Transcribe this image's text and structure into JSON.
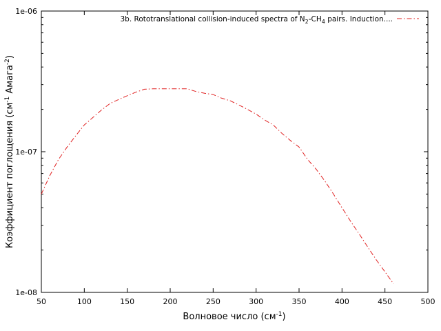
{
  "chart_data": {
    "type": "line",
    "title": "",
    "xlabel_main": "Волновое число (см",
    "xlabel_sup": "-1",
    "xlabel_end": ")",
    "ylabel_main": "Коэффициент поглощения (см",
    "ylabel_sup1": "-1",
    "ylabel_mid": " Амага",
    "ylabel_sup2": "-2",
    "ylabel_end": ")",
    "xlim": [
      50,
      500
    ],
    "ylim": [
      1e-08,
      1e-06
    ],
    "yscale": "log",
    "x_ticks": [
      50,
      100,
      150,
      200,
      250,
      300,
      350,
      400,
      450,
      500
    ],
    "x_tick_labels": [
      "50",
      "100",
      "150",
      "200",
      "250",
      "300",
      "350",
      "400",
      "450",
      "500"
    ],
    "y_ticks": [
      1e-08,
      1e-07,
      1e-06
    ],
    "y_tick_labels": [
      "1e-08",
      "1e-07",
      "1e-06"
    ],
    "grid": false,
    "legend_position": "top-right",
    "legend": {
      "text_a": "3b. Rototranslational collision-induced spectra of N",
      "sub_a": "2",
      "text_b": "-CH",
      "sub_b": "4",
      "text_c": " pairs. Induction...."
    },
    "series": [
      {
        "color": "#e02020",
        "dash": "dash-dot",
        "x": [
          50,
          60,
          70,
          80,
          90,
          100,
          110,
          120,
          130,
          140,
          150,
          160,
          170,
          180,
          190,
          200,
          210,
          220,
          230,
          240,
          250,
          260,
          270,
          280,
          290,
          300,
          310,
          320,
          330,
          340,
          350,
          360,
          370,
          380,
          390,
          400,
          410,
          420,
          430,
          440,
          450,
          460
        ],
        "y": [
          5e-08,
          6.8e-08,
          8.8e-08,
          1.08e-07,
          1.3e-07,
          1.55e-07,
          1.75e-07,
          1.98e-07,
          2.2e-07,
          2.35e-07,
          2.5e-07,
          2.65e-07,
          2.78e-07,
          2.8e-07,
          2.8e-07,
          2.8e-07,
          2.8e-07,
          2.8e-07,
          2.68e-07,
          2.6e-07,
          2.55e-07,
          2.4e-07,
          2.3e-07,
          2.15e-07,
          2e-07,
          1.85e-07,
          1.68e-07,
          1.55e-07,
          1.35e-07,
          1.2e-07,
          1.08e-07,
          8.8e-08,
          7.5e-08,
          6.2e-08,
          5e-08,
          4e-08,
          3.2e-08,
          2.6e-08,
          2.1e-08,
          1.7e-08,
          1.4e-08,
          1.15e-08
        ]
      }
    ]
  }
}
